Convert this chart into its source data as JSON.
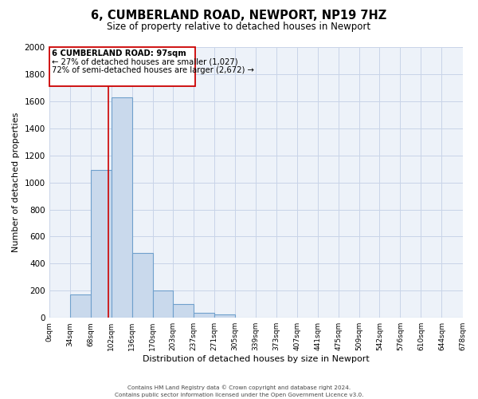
{
  "title": "6, CUMBERLAND ROAD, NEWPORT, NP19 7HZ",
  "subtitle": "Size of property relative to detached houses in Newport",
  "xlabel": "Distribution of detached houses by size in Newport",
  "ylabel": "Number of detached properties",
  "bin_edges": [
    0,
    34,
    68,
    102,
    136,
    170,
    203,
    237,
    271,
    305,
    339,
    373,
    407,
    441,
    475,
    509,
    542,
    576,
    610,
    644,
    678
  ],
  "bin_counts": [
    0,
    170,
    1090,
    1630,
    480,
    200,
    100,
    35,
    25,
    0,
    0,
    0,
    0,
    0,
    0,
    0,
    0,
    0,
    0,
    0
  ],
  "bar_facecolor": "#c9d9ec",
  "bar_edgecolor": "#6fa0cc",
  "bar_linewidth": 0.8,
  "vline_x": 97,
  "vline_color": "#cc0000",
  "vline_linewidth": 1.2,
  "ylim": [
    0,
    2000
  ],
  "yticks": [
    0,
    200,
    400,
    600,
    800,
    1000,
    1200,
    1400,
    1600,
    1800,
    2000
  ],
  "annotation_line1": "6 CUMBERLAND ROAD: 97sqm",
  "annotation_line2": "← 27% of detached houses are smaller (1,027)",
  "annotation_line3": "72% of semi-detached houses are larger (2,672) →",
  "grid_color": "#c8d4e8",
  "background_color": "#edf2f9",
  "footer_line1": "Contains HM Land Registry data © Crown copyright and database right 2024.",
  "footer_line2": "Contains public sector information licensed under the Open Government Licence v3.0.",
  "tick_labels": [
    "0sqm",
    "34sqm",
    "68sqm",
    "102sqm",
    "136sqm",
    "170sqm",
    "203sqm",
    "237sqm",
    "271sqm",
    "305sqm",
    "339sqm",
    "373sqm",
    "407sqm",
    "441sqm",
    "475sqm",
    "509sqm",
    "542sqm",
    "576sqm",
    "610sqm",
    "644sqm",
    "678sqm"
  ]
}
